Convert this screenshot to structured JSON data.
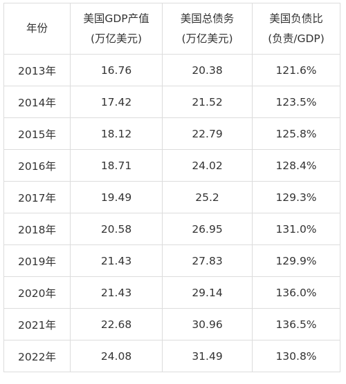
{
  "table": {
    "headers": [
      [
        "年份"
      ],
      [
        "美国GDP产值",
        "(万亿美元)"
      ],
      [
        "美国总债务",
        "(万亿美元)"
      ],
      [
        "美国负债比",
        "(负责/GDP)"
      ]
    ],
    "rows": [
      [
        "2013年",
        "16.76",
        "20.38",
        "121.6%"
      ],
      [
        "2014年",
        "17.42",
        "21.52",
        "123.5%"
      ],
      [
        "2015年",
        "18.12",
        "22.79",
        "125.8%"
      ],
      [
        "2016年",
        "18.71",
        "24.02",
        "128.4%"
      ],
      [
        "2017年",
        "19.49",
        "25.2",
        "129.3%"
      ],
      [
        "2018年",
        "20.58",
        "26.95",
        "131.0%"
      ],
      [
        "2019年",
        "21.43",
        "27.83",
        "129.9%"
      ],
      [
        "2020年",
        "21.43",
        "29.14",
        "136.0%"
      ],
      [
        "2021年",
        "22.68",
        "30.96",
        "136.5%"
      ],
      [
        "2022年",
        "24.08",
        "31.49",
        "130.8%"
      ]
    ]
  }
}
